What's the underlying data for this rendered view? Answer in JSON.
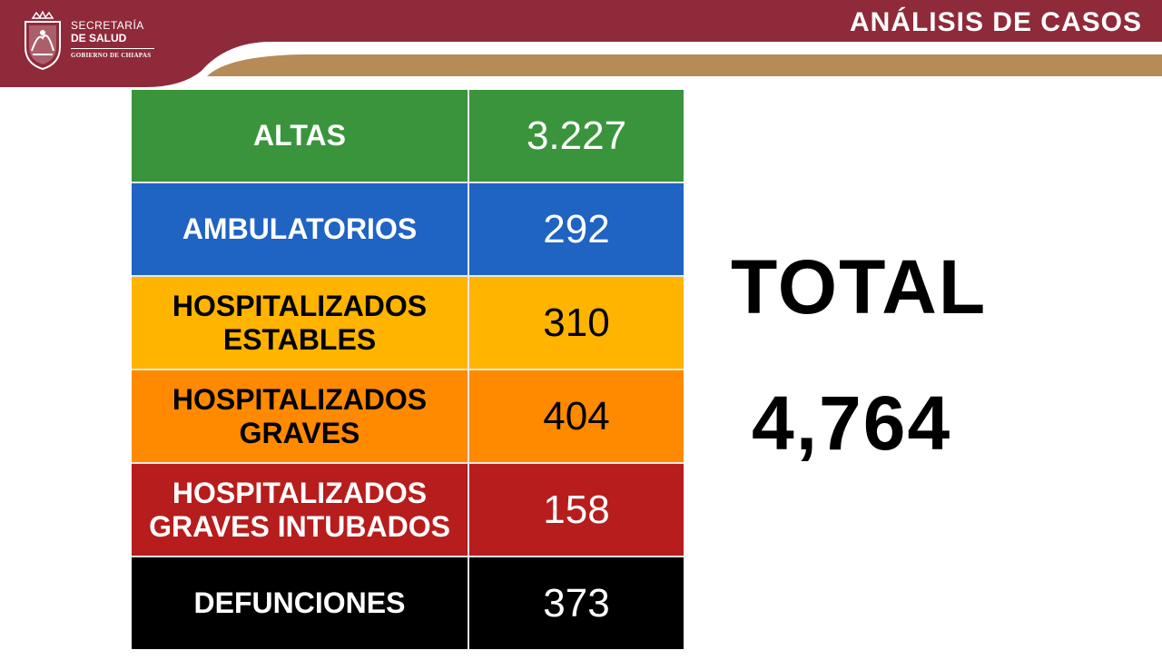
{
  "header": {
    "title": "ANÁLISIS DE CASOS",
    "org_line1": "SECRETARÍA",
    "org_line2": "DE SALUD",
    "org_line3": "GOBIERNO DE CHIAPAS",
    "logo_icon": "chiapas-coat-of-arms-icon",
    "colors": {
      "maroon": "#8f2a3a",
      "gold": "#b78b58"
    }
  },
  "rows": [
    {
      "label": "ALTAS",
      "value": "3.227",
      "bg": "#3a943c",
      "fg": "#ffffff"
    },
    {
      "label": "AMBULATORIOS",
      "value": "292",
      "bg": "#1f63c3",
      "fg": "#ffffff"
    },
    {
      "label": "HOSPITALIZADOS ESTABLES",
      "value": "310",
      "bg": "#ffb400",
      "fg": "#000000"
    },
    {
      "label": "HOSPITALIZADOS GRAVES",
      "value": "404",
      "bg": "#ff8a00",
      "fg": "#000000"
    },
    {
      "label": "HOSPITALIZADOS GRAVES INTUBADOS",
      "value": "158",
      "bg": "#b71d1d",
      "fg": "#ffffff"
    },
    {
      "label": "DEFUNCIONES",
      "value": "373",
      "bg": "#000000",
      "fg": "#ffffff"
    }
  ],
  "total": {
    "label": "TOTAL",
    "value": "4,764"
  }
}
